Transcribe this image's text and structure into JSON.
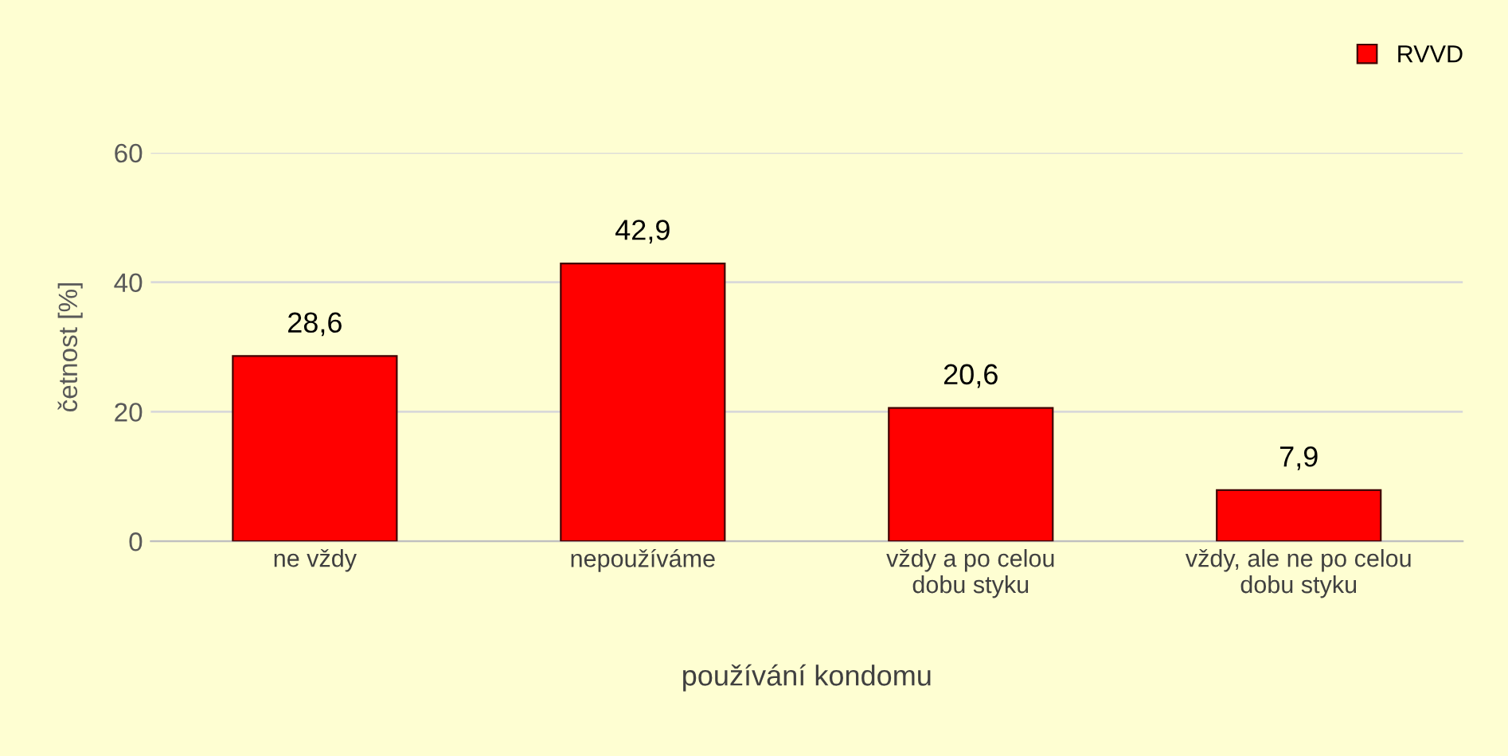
{
  "chart_data": {
    "type": "bar",
    "xlabel": "používání kondomu",
    "ylabel": "četnost [%]",
    "categories": [
      "ne vždy",
      "nepoužíváme",
      "vždy a po celou\ndobu styku",
      "vždy, ale ne po celou\ndobu styku"
    ],
    "series": [
      {
        "name": "RVVD",
        "color": "#ff0000",
        "values": [
          28.6,
          42.9,
          20.6,
          7.9
        ],
        "value_labels": [
          "28,6",
          "42,9",
          "20,6",
          "7,9"
        ]
      }
    ],
    "ylim": [
      0,
      60
    ],
    "yticks": [
      0,
      20,
      40,
      60
    ],
    "grid": "y",
    "legend": "top right"
  }
}
